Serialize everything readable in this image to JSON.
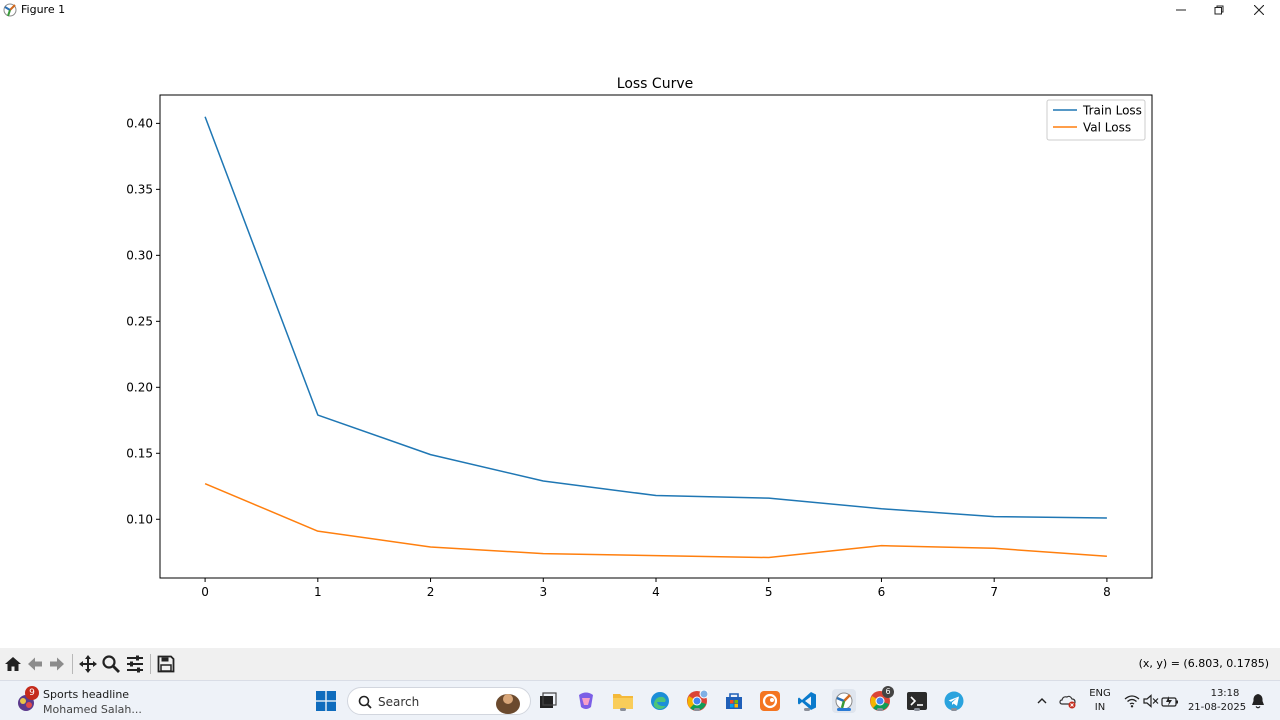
{
  "window": {
    "title": "Figure 1"
  },
  "chart_data": {
    "type": "line",
    "title": "Loss Curve",
    "xlabel": "",
    "ylabel": "",
    "x": [
      0,
      1,
      2,
      3,
      4,
      5,
      6,
      7,
      8
    ],
    "xticks": [
      "0",
      "1",
      "2",
      "3",
      "4",
      "5",
      "6",
      "7",
      "8"
    ],
    "yticks": [
      "0.10",
      "0.15",
      "0.20",
      "0.25",
      "0.30",
      "0.35",
      "0.40"
    ],
    "xlim": [
      -0.4,
      8.4
    ],
    "ylim": [
      0.0555,
      0.4215
    ],
    "grid": false,
    "legend_position": "top-right",
    "series": [
      {
        "name": "Train Loss",
        "color": "#1f77b4",
        "values": [
          0.405,
          0.179,
          0.149,
          0.129,
          0.118,
          0.116,
          0.108,
          0.102,
          0.101
        ]
      },
      {
        "name": "Val Loss",
        "color": "#ff7f0e",
        "values": [
          0.127,
          0.091,
          0.079,
          0.074,
          0.0725,
          0.071,
          0.08,
          0.078,
          0.072
        ]
      }
    ]
  },
  "toolbar": {
    "buttons": [
      "home-icon",
      "back-icon",
      "forward-icon",
      "pan-icon",
      "zoom-icon",
      "configure-icon",
      "save-icon"
    ],
    "coords": "(x, y) = (6.803, 0.1785)"
  },
  "taskbar": {
    "news": {
      "badge": "9",
      "headline": "Sports headline",
      "subtitle": "Mohamed Salah..."
    },
    "search_placeholder": "Search",
    "chrome_badge": "6",
    "language": {
      "lang": "ENG",
      "region": "IN"
    },
    "clock": {
      "time": "13:18",
      "date": "21-08-2025"
    }
  }
}
